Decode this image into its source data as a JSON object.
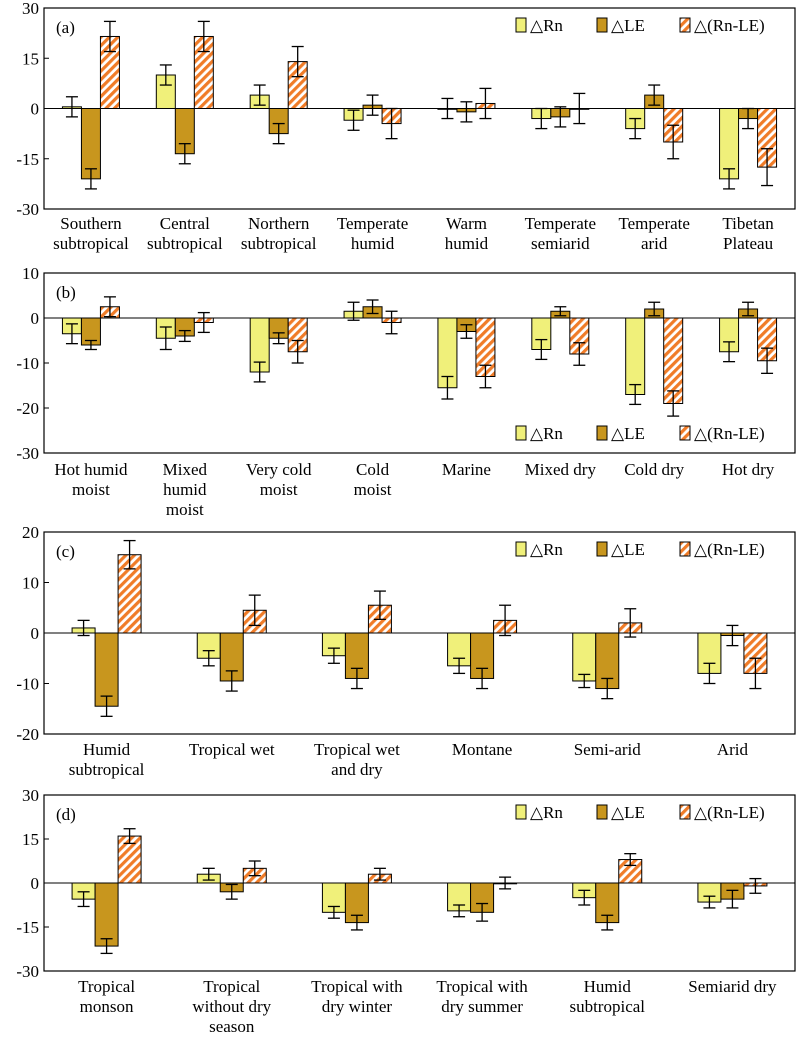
{
  "colors": {
    "rn": "#f0f07a",
    "le": "#c8961e",
    "rnle_stripe": "#f07c28",
    "axis": "#000000"
  },
  "chart_data": [
    {
      "type": "bar",
      "panel_label": "(a)",
      "legend_position": "top-right",
      "ylim": [
        -30,
        30
      ],
      "yticks": [
        -30,
        -15,
        0,
        15,
        30
      ],
      "categories": [
        [
          "Southern",
          "subtropical"
        ],
        [
          "Central",
          "subtropical"
        ],
        [
          "Northern",
          "subtropical"
        ],
        [
          "Temperate",
          "humid"
        ],
        [
          "Warm",
          "humid"
        ],
        [
          "Temperate",
          "semiarid"
        ],
        [
          "Temperate",
          "arid"
        ],
        [
          "Tibetan",
          "Plateau"
        ]
      ],
      "series": [
        {
          "name": "△Rn",
          "values": [
            0.5,
            10,
            4,
            -3.5,
            0,
            -3,
            -6,
            -21
          ],
          "errors": [
            3,
            3,
            3,
            3,
            3,
            3,
            3,
            3
          ]
        },
        {
          "name": "△LE",
          "values": [
            -21,
            -13.5,
            -7.5,
            1,
            -1,
            -2.5,
            4,
            -3
          ],
          "errors": [
            3,
            3,
            3,
            3,
            3,
            3,
            3,
            3
          ]
        },
        {
          "name": "△(Rn-LE)",
          "values": [
            21.5,
            21.5,
            14,
            -4.5,
            1.5,
            0,
            -10,
            -17.5
          ],
          "errors": [
            4.5,
            4.5,
            4.5,
            4.5,
            4.5,
            4.5,
            5,
            5.5
          ]
        }
      ]
    },
    {
      "type": "bar",
      "panel_label": "(b)",
      "legend_position": "bottom-right",
      "ylim": [
        -30,
        10
      ],
      "yticks": [
        -30,
        -20,
        -10,
        0,
        10
      ],
      "categories": [
        [
          "Hot humid",
          "moist"
        ],
        [
          "Mixed",
          "humid",
          "moist"
        ],
        [
          "Very cold",
          "moist"
        ],
        [
          "Cold",
          "moist"
        ],
        [
          "Marine"
        ],
        [
          "Mixed dry"
        ],
        [
          "Cold dry"
        ],
        [
          "Hot dry"
        ]
      ],
      "series": [
        {
          "name": "△Rn",
          "values": [
            -3.5,
            -4.5,
            -12,
            1.5,
            -15.5,
            -7,
            -17,
            -7.5
          ],
          "errors": [
            2.2,
            2.5,
            2.2,
            2,
            2.5,
            2.2,
            2.2,
            2.2
          ]
        },
        {
          "name": "△LE",
          "values": [
            -6,
            -4,
            -4.5,
            2.5,
            -3,
            1.5,
            2,
            2
          ],
          "errors": [
            1,
            1.2,
            1.2,
            1.5,
            1.5,
            1,
            1.5,
            1.5
          ]
        },
        {
          "name": "△(Rn-LE)",
          "values": [
            2.5,
            -1,
            -7.5,
            -1,
            -13,
            -8,
            -19,
            -9.5
          ],
          "errors": [
            2.2,
            2.2,
            2.5,
            2.5,
            2.5,
            2.5,
            2.8,
            2.8
          ]
        }
      ]
    },
    {
      "type": "bar",
      "panel_label": "(c)",
      "legend_position": "top-right",
      "ylim": [
        -20,
        20
      ],
      "yticks": [
        -20,
        -10,
        0,
        10,
        20
      ],
      "categories": [
        [
          "Humid",
          "subtropical"
        ],
        [
          "Tropical wet"
        ],
        [
          "Tropical wet",
          "and dry"
        ],
        [
          "Montane"
        ],
        [
          "Semi-arid"
        ],
        [
          "Arid"
        ]
      ],
      "series": [
        {
          "name": "△Rn",
          "values": [
            1,
            -5,
            -4.5,
            -6.5,
            -9.5,
            -8
          ],
          "errors": [
            1.5,
            1.5,
            1.5,
            1.5,
            1.3,
            2
          ]
        },
        {
          "name": "△LE",
          "values": [
            -14.5,
            -9.5,
            -9,
            -9,
            -11,
            -0.5
          ],
          "errors": [
            2,
            2,
            2,
            2,
            2,
            2
          ]
        },
        {
          "name": "△(Rn-LE)",
          "values": [
            15.5,
            4.5,
            5.5,
            2.5,
            2,
            -8
          ],
          "errors": [
            2.8,
            3,
            2.8,
            3,
            2.8,
            3
          ]
        }
      ]
    },
    {
      "type": "bar",
      "panel_label": "(d)",
      "legend_position": "top-right",
      "ylim": [
        -30,
        30
      ],
      "yticks": [
        -30,
        -15,
        0,
        15,
        30
      ],
      "categories": [
        [
          "Tropical",
          "monson"
        ],
        [
          "Tropical",
          "without dry",
          "season"
        ],
        [
          "Tropical with",
          "dry winter"
        ],
        [
          "Tropical with",
          "dry summer"
        ],
        [
          "Humid",
          "subtropical"
        ],
        [
          "Semiarid dry"
        ]
      ],
      "series": [
        {
          "name": "△Rn",
          "values": [
            -5.5,
            3,
            -10,
            -9.5,
            -5,
            -6.5
          ],
          "errors": [
            2.5,
            2,
            2,
            2,
            2.5,
            2
          ]
        },
        {
          "name": "△LE",
          "values": [
            -21.5,
            -3,
            -13.5,
            -10,
            -13.5,
            -5.5
          ],
          "errors": [
            2.5,
            2.5,
            2.5,
            3,
            2.5,
            3
          ]
        },
        {
          "name": "△(Rn-LE)",
          "values": [
            16,
            5,
            3,
            0,
            8,
            -1
          ],
          "errors": [
            2.5,
            2.5,
            2,
            2,
            2,
            2.5
          ]
        }
      ]
    }
  ]
}
